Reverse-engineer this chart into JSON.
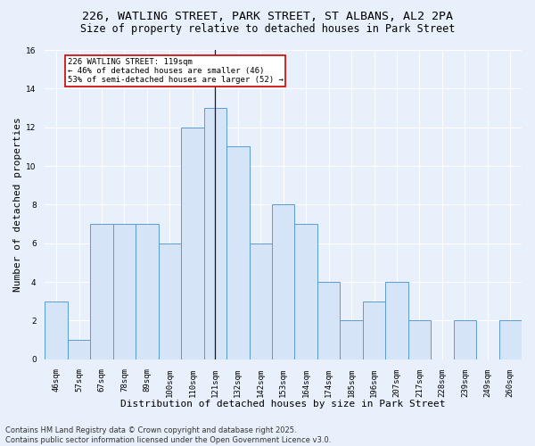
{
  "title_line1": "226, WATLING STREET, PARK STREET, ST ALBANS, AL2 2PA",
  "title_line2": "Size of property relative to detached houses in Park Street",
  "xlabel": "Distribution of detached houses by size in Park Street",
  "ylabel": "Number of detached properties",
  "categories": [
    "46sqm",
    "57sqm",
    "67sqm",
    "78sqm",
    "89sqm",
    "100sqm",
    "110sqm",
    "121sqm",
    "132sqm",
    "142sqm",
    "153sqm",
    "164sqm",
    "174sqm",
    "185sqm",
    "196sqm",
    "207sqm",
    "217sqm",
    "228sqm",
    "239sqm",
    "249sqm",
    "260sqm"
  ],
  "values": [
    3,
    1,
    7,
    7,
    7,
    6,
    12,
    13,
    11,
    6,
    8,
    7,
    4,
    2,
    3,
    4,
    2,
    0,
    2,
    0,
    2
  ],
  "bar_color": "#d6e4f7",
  "bar_edge_color": "#5b9bd5",
  "vline_x_index": 7,
  "vline_color": "#1a1a1a",
  "annotation_text": "226 WATLING STREET: 119sqm\n← 46% of detached houses are smaller (46)\n53% of semi-detached houses are larger (52) →",
  "annotation_box_color": "#ffffff",
  "annotation_box_edge": "#cc0000",
  "ylim": [
    0,
    16
  ],
  "yticks": [
    0,
    2,
    4,
    6,
    8,
    10,
    12,
    14,
    16
  ],
  "background_color": "#e8f0fb",
  "footer_text": "Contains HM Land Registry data © Crown copyright and database right 2025.\nContains public sector information licensed under the Open Government Licence v3.0.",
  "title_fontsize": 9.5,
  "subtitle_fontsize": 8.5,
  "axis_label_fontsize": 8,
  "tick_fontsize": 6.5,
  "annotation_fontsize": 6.5,
  "footer_fontsize": 6,
  "ylabel_fontsize": 8
}
